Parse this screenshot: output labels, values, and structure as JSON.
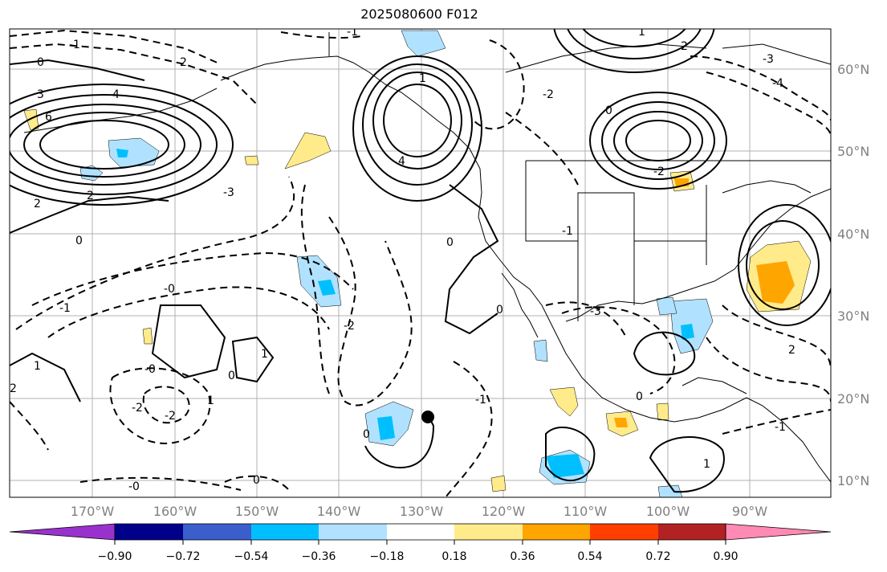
{
  "title": "2025080600 F012",
  "map": {
    "lon_labels": [
      "170°W",
      "160°W",
      "150°W",
      "140°W",
      "130°W",
      "120°W",
      "110°W",
      "100°W",
      "90°W"
    ],
    "lat_labels": [
      "60°N",
      "50°N",
      "40°N",
      "30°N",
      "20°N",
      "10°N"
    ],
    "contour_labels": [
      "-1",
      "2",
      "0",
      "3",
      "4",
      "6",
      "2",
      "2",
      "-3",
      "-0",
      "0",
      "-1",
      "-2",
      "2",
      "1",
      "-2",
      "-0",
      "1",
      "0",
      "-0",
      "0",
      "1",
      "-2",
      "-1",
      "0",
      "4",
      "-2",
      "-3",
      "1",
      "0",
      "-1",
      "0",
      "-1",
      "-3",
      "2",
      "0",
      "-2",
      "-4",
      "1",
      "0",
      "-1",
      "2",
      "1"
    ],
    "marker": "storm-center-dot"
  },
  "colorbar": {
    "colors": [
      "#9932cc",
      "#00008b",
      "#3a5fcd",
      "#00bfff",
      "#b0e2ff",
      "#ffffff",
      "#ffeb8a",
      "#ffa500",
      "#ff3e00",
      "#b22222",
      "#ff8ab4"
    ],
    "tick_labels": [
      "−0.90",
      "−0.72",
      "−0.54",
      "−0.36",
      "−0.18",
      "0.18",
      "0.36",
      "0.54",
      "0.72",
      "0.90"
    ]
  }
}
